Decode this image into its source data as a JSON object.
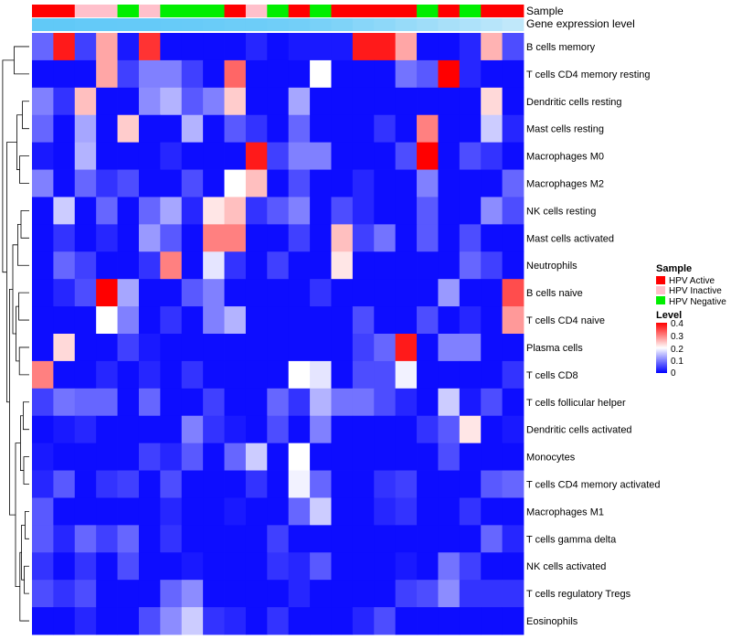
{
  "chart_data": {
    "type": "heatmap",
    "title": "",
    "annotation_rows": [
      "Sample",
      "Gene expression level"
    ],
    "sample_groups": [
      "Active",
      "Active",
      "Inactive",
      "Inactive",
      "Negative",
      "Inactive",
      "Negative",
      "Negative",
      "Negative",
      "Active",
      "Inactive",
      "Negative",
      "Active",
      "Negative",
      "Active",
      "Active",
      "Active",
      "Active",
      "Negative",
      "Active",
      "Negative",
      "Active",
      "Active"
    ],
    "gene_expression_level": [
      0.88,
      0.88,
      0.86,
      0.86,
      0.85,
      0.85,
      0.84,
      0.83,
      0.82,
      0.8,
      0.8,
      0.78,
      0.76,
      0.72,
      0.68,
      0.62,
      0.58,
      0.52,
      0.46,
      0.4,
      0.36,
      0.3,
      0.24
    ],
    "rows": [
      {
        "label": "B cells memory",
        "values": [
          0.08,
          0.38,
          0.05,
          0.27,
          0.02,
          0.36,
          0.01,
          0.01,
          0.01,
          0.01,
          0.03,
          0.01,
          0.02,
          0.02,
          0.02,
          0.38,
          0.38,
          0.27,
          0.01,
          0.01,
          0.03,
          0.26,
          0.06
        ]
      },
      {
        "label": "T cells CD4 memory resting",
        "values": [
          0.01,
          0.01,
          0.01,
          0.27,
          0.05,
          0.1,
          0.1,
          0.05,
          0.01,
          0.32,
          0.01,
          0.01,
          0.01,
          0.2,
          0.01,
          0.01,
          0.01,
          0.09,
          0.07,
          0.4,
          0.03,
          0.01,
          0.01
        ]
      },
      {
        "label": "Dendritic cells resting",
        "values": [
          0.1,
          0.04,
          0.25,
          0.01,
          0.01,
          0.11,
          0.14,
          0.07,
          0.1,
          0.24,
          0.01,
          0.01,
          0.13,
          0.01,
          0.01,
          0.01,
          0.01,
          0.01,
          0.01,
          0.01,
          0.01,
          0.23,
          0.01
        ]
      },
      {
        "label": "Mast cells resting",
        "values": [
          0.08,
          0.01,
          0.13,
          0.01,
          0.24,
          0.01,
          0.01,
          0.14,
          0.01,
          0.07,
          0.04,
          0.01,
          0.08,
          0.01,
          0.01,
          0.01,
          0.04,
          0.01,
          0.3,
          0.01,
          0.01,
          0.16,
          0.03
        ]
      },
      {
        "label": "Macrophages M0",
        "values": [
          0.02,
          0.01,
          0.14,
          0.01,
          0.01,
          0.01,
          0.03,
          0.01,
          0.01,
          0.01,
          0.38,
          0.05,
          0.1,
          0.1,
          0.01,
          0.01,
          0.01,
          0.06,
          0.4,
          0.01,
          0.06,
          0.04,
          0.01
        ]
      },
      {
        "label": "Macrophages M2",
        "values": [
          0.1,
          0.01,
          0.08,
          0.04,
          0.06,
          0.01,
          0.01,
          0.06,
          0.01,
          0.2,
          0.25,
          0.01,
          0.06,
          0.01,
          0.01,
          0.03,
          0.01,
          0.01,
          0.1,
          0.01,
          0.01,
          0.01,
          0.08
        ]
      },
      {
        "label": "NK cells resting",
        "values": [
          0.01,
          0.16,
          0.01,
          0.08,
          0.01,
          0.08,
          0.13,
          0.03,
          0.22,
          0.25,
          0.04,
          0.07,
          0.1,
          0.01,
          0.06,
          0.03,
          0.01,
          0.01,
          0.07,
          0.01,
          0.01,
          0.11,
          0.06
        ]
      },
      {
        "label": "Mast cells activated",
        "values": [
          0.01,
          0.04,
          0.01,
          0.03,
          0.01,
          0.12,
          0.07,
          0.01,
          0.3,
          0.3,
          0.01,
          0.01,
          0.05,
          0.01,
          0.25,
          0.05,
          0.09,
          0.01,
          0.07,
          0.01,
          0.06,
          0.01,
          0.01
        ]
      },
      {
        "label": "Neutrophils",
        "values": [
          0.01,
          0.08,
          0.05,
          0.01,
          0.01,
          0.04,
          0.3,
          0.01,
          0.18,
          0.04,
          0.01,
          0.05,
          0.01,
          0.01,
          0.22,
          0.01,
          0.01,
          0.01,
          0.01,
          0.01,
          0.08,
          0.05,
          0.01
        ]
      },
      {
        "label": "B cells naive",
        "values": [
          0.01,
          0.03,
          0.06,
          0.4,
          0.13,
          0.01,
          0.01,
          0.07,
          0.1,
          0.01,
          0.01,
          0.01,
          0.01,
          0.04,
          0.01,
          0.01,
          0.01,
          0.01,
          0.01,
          0.12,
          0.01,
          0.01,
          0.34
        ]
      },
      {
        "label": "T cells CD4 naive",
        "values": [
          0.01,
          0.01,
          0.01,
          0.2,
          0.1,
          0.01,
          0.04,
          0.01,
          0.1,
          0.14,
          0.01,
          0.01,
          0.01,
          0.01,
          0.01,
          0.06,
          0.01,
          0.01,
          0.06,
          0.01,
          0.03,
          0.01,
          0.28
        ]
      },
      {
        "label": "Plasma cells",
        "values": [
          0.01,
          0.23,
          0.01,
          0.01,
          0.05,
          0.02,
          0.01,
          0.01,
          0.01,
          0.01,
          0.01,
          0.01,
          0.01,
          0.01,
          0.01,
          0.05,
          0.08,
          0.38,
          0.01,
          0.1,
          0.1,
          0.01,
          0.01
        ]
      },
      {
        "label": "T cells CD8",
        "values": [
          0.3,
          0.01,
          0.01,
          0.03,
          0.01,
          0.03,
          0.01,
          0.04,
          0.01,
          0.01,
          0.01,
          0.01,
          0.2,
          0.18,
          0.01,
          0.06,
          0.06,
          0.19,
          0.01,
          0.01,
          0.01,
          0.01,
          0.04
        ]
      },
      {
        "label": "T cells follicular helper",
        "values": [
          0.05,
          0.09,
          0.08,
          0.08,
          0.01,
          0.08,
          0.01,
          0.01,
          0.05,
          0.01,
          0.01,
          0.08,
          0.04,
          0.14,
          0.09,
          0.09,
          0.06,
          0.03,
          0.01,
          0.16,
          0.02,
          0.06,
          0.01
        ]
      },
      {
        "label": "Dendritic cells activated",
        "values": [
          0.01,
          0.02,
          0.03,
          0.01,
          0.01,
          0.01,
          0.01,
          0.1,
          0.04,
          0.02,
          0.01,
          0.06,
          0.01,
          0.1,
          0.01,
          0.01,
          0.01,
          0.01,
          0.04,
          0.07,
          0.22,
          0.01,
          0.02
        ]
      },
      {
        "label": "Monocytes",
        "values": [
          0.02,
          0.01,
          0.01,
          0.01,
          0.01,
          0.05,
          0.03,
          0.07,
          0.01,
          0.08,
          0.16,
          0.01,
          0.2,
          0.01,
          0.01,
          0.01,
          0.01,
          0.01,
          0.01,
          0.06,
          0.01,
          0.01,
          0.01
        ]
      },
      {
        "label": "T cells CD4 memory activated",
        "values": [
          0.03,
          0.07,
          0.01,
          0.04,
          0.05,
          0.01,
          0.06,
          0.01,
          0.01,
          0.01,
          0.04,
          0.01,
          0.19,
          0.08,
          0.01,
          0.01,
          0.04,
          0.05,
          0.01,
          0.01,
          0.01,
          0.07,
          0.08
        ]
      },
      {
        "label": "Macrophages M1",
        "values": [
          0.07,
          0.01,
          0.01,
          0.01,
          0.01,
          0.01,
          0.03,
          0.01,
          0.01,
          0.02,
          0.01,
          0.01,
          0.08,
          0.16,
          0.01,
          0.01,
          0.03,
          0.04,
          0.01,
          0.01,
          0.04,
          0.01,
          0.01
        ]
      },
      {
        "label": "T cells gamma delta",
        "values": [
          0.07,
          0.03,
          0.08,
          0.05,
          0.08,
          0.01,
          0.04,
          0.01,
          0.01,
          0.01,
          0.01,
          0.05,
          0.01,
          0.01,
          0.01,
          0.01,
          0.01,
          0.01,
          0.01,
          0.01,
          0.01,
          0.08,
          0.03
        ]
      },
      {
        "label": "NK cells activated",
        "values": [
          0.04,
          0.01,
          0.04,
          0.01,
          0.06,
          0.01,
          0.01,
          0.02,
          0.01,
          0.01,
          0.01,
          0.04,
          0.03,
          0.07,
          0.01,
          0.01,
          0.01,
          0.02,
          0.01,
          0.09,
          0.05,
          0.01,
          0.01
        ]
      },
      {
        "label": "T cells regulatory  Tregs",
        "values": [
          0.06,
          0.04,
          0.06,
          0.01,
          0.01,
          0.01,
          0.08,
          0.11,
          0.01,
          0.01,
          0.01,
          0.01,
          0.03,
          0.01,
          0.01,
          0.01,
          0.01,
          0.05,
          0.06,
          0.11,
          0.04,
          0.04,
          0.04
        ]
      },
      {
        "label": "Eosinophils",
        "values": [
          0.01,
          0.01,
          0.03,
          0.01,
          0.01,
          0.06,
          0.11,
          0.16,
          0.04,
          0.03,
          0.01,
          0.04,
          0.01,
          0.01,
          0.01,
          0.03,
          0.06,
          0.01,
          0.01,
          0.01,
          0.01,
          0.01,
          0.01
        ]
      }
    ],
    "legend": {
      "sample_title": "Sample",
      "sample_items": [
        {
          "key": "Active",
          "label": "HPV Active",
          "color": "#ff0000"
        },
        {
          "key": "Inactive",
          "label": "HPV Inactive",
          "color": "#ffc0cb"
        },
        {
          "key": "Negative",
          "label": "HPV Negative",
          "color": "#00ee00"
        }
      ],
      "level_title": "Level",
      "level_ticks": [
        "0.4",
        "0.3",
        "0.2",
        "0.1",
        "0"
      ],
      "level_tick_values": [
        0.4,
        0.3,
        0.2,
        0.1,
        0
      ],
      "range": [
        0,
        0.4
      ]
    },
    "colors": {
      "low": "#0000ff",
      "mid": "#ffffff",
      "high": "#ff0000",
      "expression_light": "#e4f4fb",
      "expression_dark": "#4fc3f7",
      "dendrogram": "#000000"
    }
  }
}
